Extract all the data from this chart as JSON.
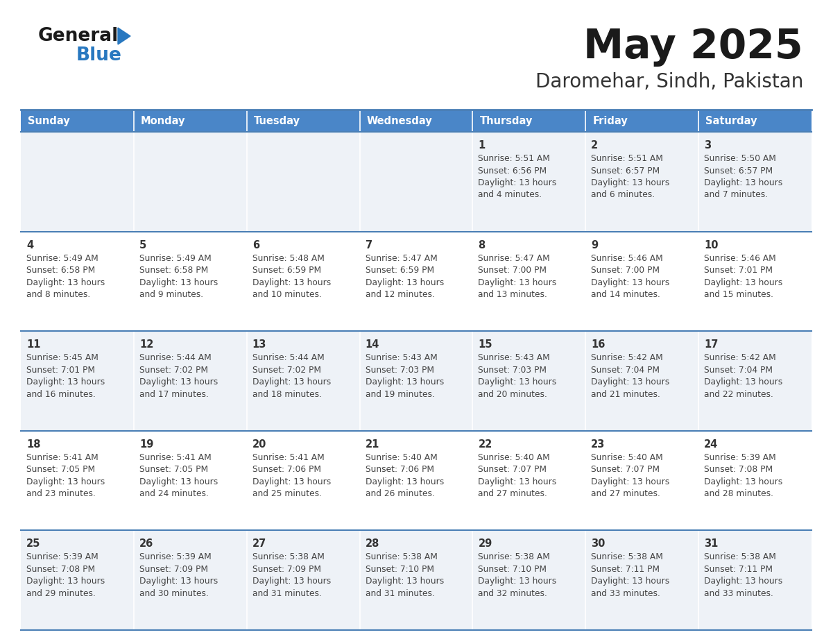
{
  "title": "May 2025",
  "subtitle": "Daromehar, Sindh, Pakistan",
  "days_of_week": [
    "Sunday",
    "Monday",
    "Tuesday",
    "Wednesday",
    "Thursday",
    "Friday",
    "Saturday"
  ],
  "header_bg": "#4a86c8",
  "header_text": "#ffffff",
  "row_bg_odd": "#eef2f7",
  "row_bg_even": "#ffffff",
  "divider_color": "#4a7fb5",
  "day_number_color": "#333333",
  "content_color": "#444444",
  "title_color": "#1a1a1a",
  "subtitle_color": "#333333",
  "logo_black": "#1a1a1a",
  "logo_blue": "#2878c0",
  "calendar_data": [
    [
      {
        "day": "",
        "sunrise": "",
        "sunset": "",
        "daylight": ""
      },
      {
        "day": "",
        "sunrise": "",
        "sunset": "",
        "daylight": ""
      },
      {
        "day": "",
        "sunrise": "",
        "sunset": "",
        "daylight": ""
      },
      {
        "day": "",
        "sunrise": "",
        "sunset": "",
        "daylight": ""
      },
      {
        "day": "1",
        "sunrise": "5:51 AM",
        "sunset": "6:56 PM",
        "daylight": "13 hours and 4 minutes."
      },
      {
        "day": "2",
        "sunrise": "5:51 AM",
        "sunset": "6:57 PM",
        "daylight": "13 hours and 6 minutes."
      },
      {
        "day": "3",
        "sunrise": "5:50 AM",
        "sunset": "6:57 PM",
        "daylight": "13 hours and 7 minutes."
      }
    ],
    [
      {
        "day": "4",
        "sunrise": "5:49 AM",
        "sunset": "6:58 PM",
        "daylight": "13 hours and 8 minutes."
      },
      {
        "day": "5",
        "sunrise": "5:49 AM",
        "sunset": "6:58 PM",
        "daylight": "13 hours and 9 minutes."
      },
      {
        "day": "6",
        "sunrise": "5:48 AM",
        "sunset": "6:59 PM",
        "daylight": "13 hours and 10 minutes."
      },
      {
        "day": "7",
        "sunrise": "5:47 AM",
        "sunset": "6:59 PM",
        "daylight": "13 hours and 12 minutes."
      },
      {
        "day": "8",
        "sunrise": "5:47 AM",
        "sunset": "7:00 PM",
        "daylight": "13 hours and 13 minutes."
      },
      {
        "day": "9",
        "sunrise": "5:46 AM",
        "sunset": "7:00 PM",
        "daylight": "13 hours and 14 minutes."
      },
      {
        "day": "10",
        "sunrise": "5:46 AM",
        "sunset": "7:01 PM",
        "daylight": "13 hours and 15 minutes."
      }
    ],
    [
      {
        "day": "11",
        "sunrise": "5:45 AM",
        "sunset": "7:01 PM",
        "daylight": "13 hours and 16 minutes."
      },
      {
        "day": "12",
        "sunrise": "5:44 AM",
        "sunset": "7:02 PM",
        "daylight": "13 hours and 17 minutes."
      },
      {
        "day": "13",
        "sunrise": "5:44 AM",
        "sunset": "7:02 PM",
        "daylight": "13 hours and 18 minutes."
      },
      {
        "day": "14",
        "sunrise": "5:43 AM",
        "sunset": "7:03 PM",
        "daylight": "13 hours and 19 minutes."
      },
      {
        "day": "15",
        "sunrise": "5:43 AM",
        "sunset": "7:03 PM",
        "daylight": "13 hours and 20 minutes."
      },
      {
        "day": "16",
        "sunrise": "5:42 AM",
        "sunset": "7:04 PM",
        "daylight": "13 hours and 21 minutes."
      },
      {
        "day": "17",
        "sunrise": "5:42 AM",
        "sunset": "7:04 PM",
        "daylight": "13 hours and 22 minutes."
      }
    ],
    [
      {
        "day": "18",
        "sunrise": "5:41 AM",
        "sunset": "7:05 PM",
        "daylight": "13 hours and 23 minutes."
      },
      {
        "day": "19",
        "sunrise": "5:41 AM",
        "sunset": "7:05 PM",
        "daylight": "13 hours and 24 minutes."
      },
      {
        "day": "20",
        "sunrise": "5:41 AM",
        "sunset": "7:06 PM",
        "daylight": "13 hours and 25 minutes."
      },
      {
        "day": "21",
        "sunrise": "5:40 AM",
        "sunset": "7:06 PM",
        "daylight": "13 hours and 26 minutes."
      },
      {
        "day": "22",
        "sunrise": "5:40 AM",
        "sunset": "7:07 PM",
        "daylight": "13 hours and 27 minutes."
      },
      {
        "day": "23",
        "sunrise": "5:40 AM",
        "sunset": "7:07 PM",
        "daylight": "13 hours and 27 minutes."
      },
      {
        "day": "24",
        "sunrise": "5:39 AM",
        "sunset": "7:08 PM",
        "daylight": "13 hours and 28 minutes."
      }
    ],
    [
      {
        "day": "25",
        "sunrise": "5:39 AM",
        "sunset": "7:08 PM",
        "daylight": "13 hours and 29 minutes."
      },
      {
        "day": "26",
        "sunrise": "5:39 AM",
        "sunset": "7:09 PM",
        "daylight": "13 hours and 30 minutes."
      },
      {
        "day": "27",
        "sunrise": "5:38 AM",
        "sunset": "7:09 PM",
        "daylight": "13 hours and 31 minutes."
      },
      {
        "day": "28",
        "sunrise": "5:38 AM",
        "sunset": "7:10 PM",
        "daylight": "13 hours and 31 minutes."
      },
      {
        "day": "29",
        "sunrise": "5:38 AM",
        "sunset": "7:10 PM",
        "daylight": "13 hours and 32 minutes."
      },
      {
        "day": "30",
        "sunrise": "5:38 AM",
        "sunset": "7:11 PM",
        "daylight": "13 hours and 33 minutes."
      },
      {
        "day": "31",
        "sunrise": "5:38 AM",
        "sunset": "7:11 PM",
        "daylight": "13 hours and 33 minutes."
      }
    ]
  ]
}
